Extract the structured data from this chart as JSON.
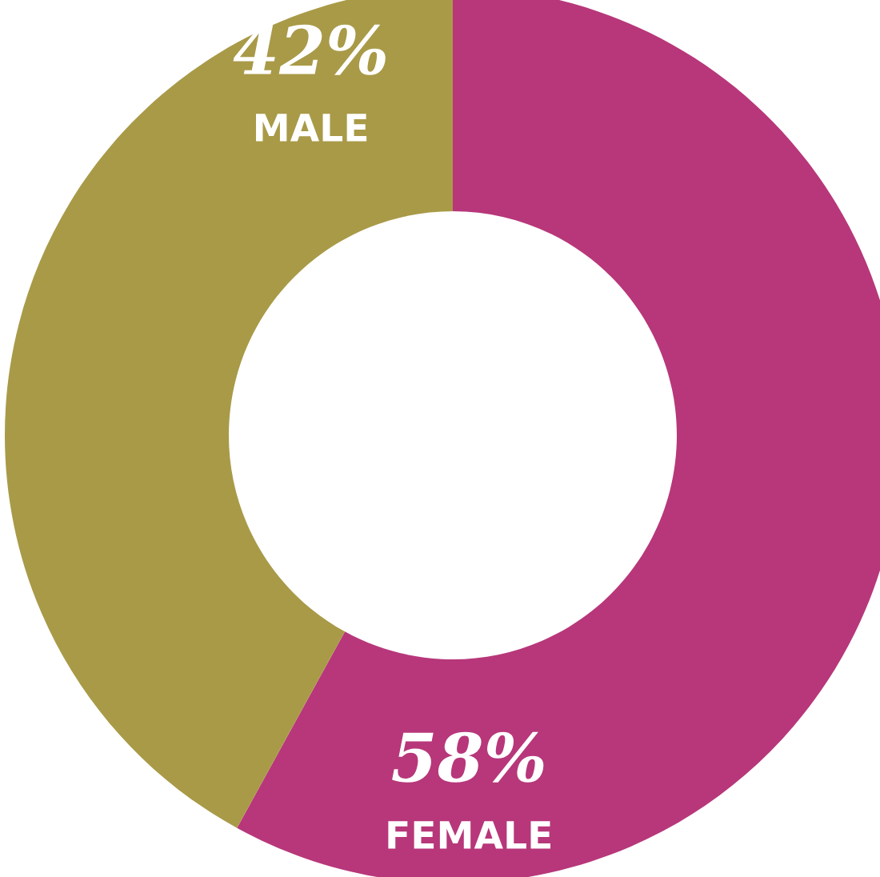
{
  "chart_data": {
    "type": "donut",
    "categories": [
      "MALE",
      "FEMALE"
    ],
    "values": [
      42,
      58
    ],
    "value_labels": [
      "42%",
      "58%"
    ],
    "colors": [
      "#a99a48",
      "#b7377a"
    ]
  }
}
